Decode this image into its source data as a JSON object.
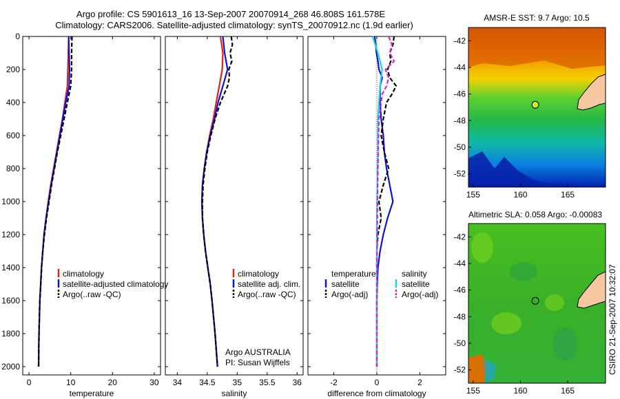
{
  "header": {
    "line1": "Argo profile: CS 5901613_16 13-Sep-2007 20070914_268 46.808S 161.578E",
    "line2": "Climatology: CARS2006. Satellite-adjusted climatology: synTS_20070912.nc (1.9d earlier)"
  },
  "credit": "CSIRO 21-Sep-2007 10:32:07",
  "colors": {
    "climatology": "#e02020",
    "satellite": "#1010d0",
    "argo": "#000000",
    "salinity_satellite": "#10d8e8",
    "salinity_argo": "#e020c8",
    "land": "#f5c8a0"
  },
  "chart_data": [
    {
      "type": "line",
      "name": "temperature-profile",
      "xlabel": "temperature",
      "xlim": [
        -1.5,
        31.5
      ],
      "xticks": [
        0,
        10,
        20,
        30
      ],
      "ylim": [
        2050,
        0
      ],
      "yticks": [
        0,
        200,
        400,
        600,
        800,
        1000,
        1200,
        1400,
        1600,
        1800,
        2000
      ],
      "legend": [
        "climatology",
        "satellite-adjusted climatology",
        "Argo(..raw -QC)"
      ],
      "legend_placement": "lower-right",
      "series": [
        {
          "name": "climatology",
          "depth": [
            0,
            100,
            200,
            300,
            400,
            500,
            600,
            700,
            800,
            900,
            1000,
            1100,
            1200,
            1300,
            1400,
            1500,
            1600,
            1800,
            2000
          ],
          "values": [
            9.5,
            9.4,
            9.3,
            9.2,
            8.6,
            8.0,
            7.3,
            6.6,
            5.9,
            5.2,
            4.6,
            4.1,
            3.6,
            3.3,
            3.0,
            2.8,
            2.6,
            2.4,
            2.3
          ]
        },
        {
          "name": "satellite-adjusted climatology",
          "depth": [
            0,
            100,
            200,
            300,
            400,
            500,
            600,
            700,
            800,
            900,
            1000,
            1100,
            1200,
            1300,
            1400,
            1500,
            1600,
            1800,
            2000
          ],
          "values": [
            9.5,
            9.6,
            9.7,
            9.6,
            8.8,
            8.1,
            7.4,
            6.7,
            6.0,
            5.3,
            4.7,
            4.1,
            3.6,
            3.3,
            3.0,
            2.8,
            2.6,
            2.4,
            2.3
          ]
        },
        {
          "name": "Argo(..raw -QC)",
          "depth": [
            0,
            100,
            200,
            300,
            400,
            500,
            600,
            700,
            800,
            900,
            1000,
            1100,
            1200,
            1300,
            1400,
            1500,
            1600,
            1800,
            2000
          ],
          "values": [
            10.3,
            10.2,
            10.2,
            10.0,
            9.2,
            8.4,
            7.6,
            6.8,
            6.1,
            5.4,
            4.8,
            4.2,
            3.7,
            3.3,
            3.0,
            2.8,
            2.6,
            2.4,
            2.3
          ]
        }
      ]
    },
    {
      "type": "line",
      "name": "salinity-profile",
      "xlabel": "salinity",
      "xlim": [
        33.8,
        36.1
      ],
      "xticks": [
        34,
        34.5,
        35,
        35.5,
        36
      ],
      "ylim": [
        2050,
        0
      ],
      "legend": [
        "climatology",
        "satellite adj. clim.",
        "Argo(..raw -QC)"
      ],
      "legend_placement": "lower-right",
      "annotation": [
        "Argo AUSTRALIA",
        "PI: Susan Wijffels"
      ],
      "series": [
        {
          "name": "climatology",
          "depth": [
            0,
            100,
            200,
            300,
            400,
            500,
            600,
            700,
            800,
            900,
            1000,
            1100,
            1200,
            1300,
            1400,
            1500,
            1600,
            1800,
            2000
          ],
          "values": [
            34.72,
            34.76,
            34.75,
            34.7,
            34.65,
            34.6,
            34.54,
            34.49,
            34.45,
            34.42,
            34.41,
            34.42,
            34.44,
            34.47,
            34.51,
            34.55,
            34.58,
            34.63,
            34.67
          ]
        },
        {
          "name": "satellite adj. clim.",
          "depth": [
            0,
            100,
            200,
            300,
            400,
            500,
            600,
            700,
            800,
            900,
            1000,
            1100,
            1200,
            1300,
            1400,
            1500,
            1600,
            1800,
            2000
          ],
          "values": [
            34.76,
            34.79,
            34.84,
            34.76,
            34.68,
            34.62,
            34.55,
            34.49,
            34.45,
            34.42,
            34.41,
            34.42,
            34.44,
            34.47,
            34.51,
            34.55,
            34.58,
            34.63,
            34.67
          ]
        },
        {
          "name": "Argo(..raw -QC)",
          "depth": [
            0,
            50,
            100,
            150,
            200,
            250,
            300,
            350,
            400,
            500,
            600,
            700,
            800,
            900,
            1000,
            1100,
            1200,
            1300,
            1400,
            1500,
            1600,
            1800,
            2000
          ],
          "values": [
            34.9,
            34.92,
            34.88,
            34.91,
            34.86,
            34.87,
            34.84,
            34.78,
            34.72,
            34.63,
            34.56,
            34.5,
            34.46,
            34.43,
            34.42,
            34.42,
            34.44,
            34.47,
            34.51,
            34.55,
            34.58,
            34.63,
            34.67
          ]
        }
      ]
    },
    {
      "type": "line",
      "name": "difference-profile",
      "xlabel": "difference from climatology",
      "xlim": [
        -3.2,
        3.2
      ],
      "xticks": [
        -2,
        0,
        2
      ],
      "ylim": [
        2050,
        0
      ],
      "legend_titles": [
        "temperature",
        "salinity"
      ],
      "legend": [
        "satellite",
        "Argo(-adj)",
        "satellite",
        "Argo(-adj)"
      ],
      "legend_placement": "lower",
      "series": [
        {
          "name": "temperature satellite",
          "depth": [
            0,
            50,
            100,
            150,
            200,
            250,
            300,
            400,
            500,
            600,
            700,
            800,
            900,
            1000,
            1100,
            1200,
            1300,
            1400,
            1500,
            1600,
            1800,
            2000
          ],
          "values": [
            -0.1,
            -0.05,
            -0.02,
            0.05,
            0.1,
            0.25,
            0.15,
            0.15,
            0.2,
            0.3,
            0.35,
            0.45,
            0.6,
            0.75,
            0.5,
            0.3,
            0.15,
            0.05,
            0.02,
            0.0,
            0.0,
            0.0
          ]
        },
        {
          "name": "temperature Argo(-adj)",
          "depth": [
            0,
            50,
            100,
            150,
            200,
            250,
            300,
            350,
            400,
            500,
            600,
            700,
            800,
            900,
            1000,
            1100,
            1200,
            1300,
            1400,
            1500,
            1600,
            1800,
            2000
          ],
          "values": [
            0.8,
            0.75,
            0.6,
            0.65,
            0.5,
            0.6,
            0.9,
            0.7,
            0.45,
            0.3,
            0.2,
            0.35,
            0.55,
            0.3,
            0.1,
            0.2,
            0.05,
            0.0,
            0.0,
            0.0,
            0.0,
            0.0,
            0.0
          ]
        },
        {
          "name": "salinity satellite",
          "depth": [
            0,
            100,
            200,
            300,
            400,
            500,
            700,
            900,
            1100,
            1300,
            1500,
            1700,
            2000
          ],
          "values": [
            -0.2,
            0.05,
            0.25,
            0.15,
            0.1,
            0.05,
            0.05,
            0.02,
            0.0,
            0.0,
            0.0,
            0.0,
            0.0
          ]
        },
        {
          "name": "salinity Argo(-adj)",
          "depth": [
            0,
            50,
            100,
            150,
            200,
            250,
            300,
            350,
            400,
            500,
            600,
            800,
            1000,
            1200,
            1400,
            1600,
            1800,
            2000
          ],
          "values": [
            0.55,
            0.7,
            0.6,
            0.8,
            0.4,
            0.55,
            0.45,
            0.25,
            0.2,
            0.1,
            0.08,
            0.05,
            0.03,
            0.02,
            0.0,
            0.0,
            0.0,
            0.0
          ]
        }
      ]
    },
    {
      "type": "heatmap",
      "name": "sst-map",
      "title": "AMSR-E SST: 9.7 Argo: 10.5",
      "xlim": [
        154.5,
        169
      ],
      "ylim": [
        -53,
        -41
      ],
      "xticks": [
        155,
        160,
        165
      ],
      "yticks": [
        -42,
        -44,
        -46,
        -48,
        -50,
        -52
      ],
      "float_position": {
        "lon": 161.578,
        "lat": -46.808
      }
    },
    {
      "type": "heatmap",
      "name": "sla-map",
      "title": "Altimetric SLA: 0.058 Argo: -0.00083",
      "xlim": [
        154.5,
        169
      ],
      "ylim": [
        -53,
        -41
      ],
      "xticks": [
        155,
        160,
        165
      ],
      "yticks": [
        -42,
        -44,
        -46,
        -48,
        -50,
        -52
      ],
      "float_position": {
        "lon": 161.578,
        "lat": -46.808
      }
    }
  ]
}
